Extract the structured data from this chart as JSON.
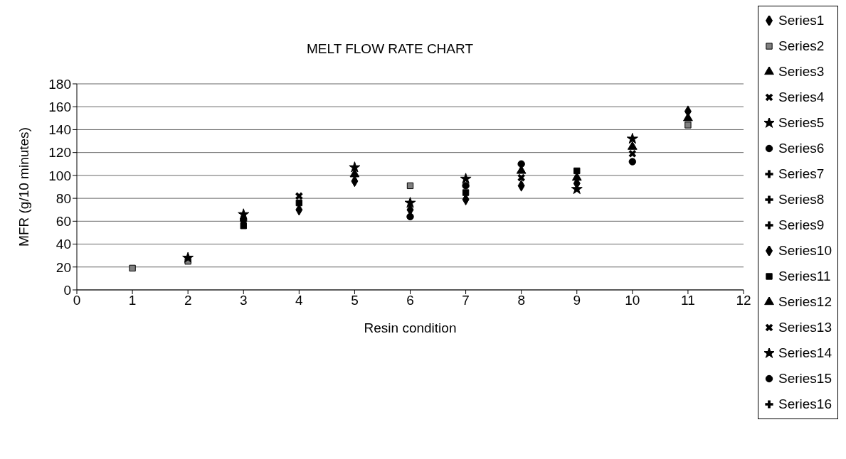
{
  "chart_data": {
    "type": "scatter",
    "title": "MELT FLOW RATE CHART",
    "xlabel": "Resin condition",
    "ylabel": "MFR (g/10 minutes)",
    "x": [
      1,
      2,
      3,
      4,
      5,
      6,
      7,
      8,
      9,
      10,
      11
    ],
    "xlim": [
      0,
      12
    ],
    "xticks": [
      0,
      1,
      2,
      3,
      4,
      5,
      6,
      7,
      8,
      9,
      10,
      11,
      12
    ],
    "ylim": [
      0,
      180
    ],
    "yticks": [
      0,
      20,
      40,
      60,
      80,
      100,
      120,
      140,
      160,
      180
    ],
    "grid": "y",
    "legend": "right",
    "series": [
      {
        "name": "Series1",
        "color": "#000000",
        "marker": "diamond",
        "values": [
          null,
          null,
          null,
          null,
          95,
          null,
          79,
          91,
          null,
          null,
          156
        ]
      },
      {
        "name": "Series2",
        "color": "#808080",
        "marker": "square",
        "values": [
          19,
          25,
          null,
          null,
          null,
          91,
          null,
          null,
          null,
          null,
          144
        ]
      },
      {
        "name": "Series3",
        "color": "#000000",
        "marker": "triangle",
        "values": [
          null,
          null,
          null,
          null,
          101,
          null,
          null,
          104,
          98,
          125,
          null
        ]
      },
      {
        "name": "Series4",
        "color": "#000000",
        "marker": "cross",
        "values": [
          null,
          null,
          null,
          82,
          null,
          null,
          null,
          98,
          null,
          119,
          null
        ]
      },
      {
        "name": "Series5",
        "color": "#000000",
        "marker": "star",
        "values": [
          null,
          28,
          66,
          null,
          107,
          null,
          97,
          null,
          null,
          132,
          null
        ]
      },
      {
        "name": "Series6",
        "color": "#000000",
        "marker": "circle",
        "values": [
          null,
          null,
          61,
          null,
          null,
          64,
          91,
          110,
          null,
          112,
          null
        ]
      },
      {
        "name": "Series7",
        "color": "#000000",
        "values": [
          null,
          null,
          null,
          null,
          null,
          null,
          null,
          null,
          null,
          null,
          null
        ]
      },
      {
        "name": "Series8",
        "color": "#000000",
        "values": [
          null,
          null,
          null,
          null,
          null,
          null,
          null,
          null,
          null,
          null,
          null
        ]
      },
      {
        "name": "Series9",
        "color": "#000000",
        "values": [
          null,
          null,
          null,
          null,
          null,
          null,
          null,
          null,
          null,
          null,
          null
        ]
      },
      {
        "name": "Series10",
        "color": "#000000",
        "marker": "diamond",
        "values": [
          null,
          null,
          null,
          70,
          null,
          70,
          null,
          null,
          93,
          null,
          null
        ]
      },
      {
        "name": "Series11",
        "color": "#000000",
        "marker": "square",
        "values": [
          null,
          null,
          56,
          76,
          null,
          null,
          85,
          null,
          104,
          null,
          null
        ]
      },
      {
        "name": "Series12",
        "color": "#000000",
        "marker": "triangle",
        "values": [
          null,
          null,
          null,
          null,
          null,
          null,
          null,
          null,
          null,
          null,
          150
        ]
      },
      {
        "name": "Series13",
        "color": "#000000",
        "marker": "cross",
        "values": [
          null,
          null,
          null,
          null,
          null,
          null,
          null,
          null,
          null,
          null,
          null
        ]
      },
      {
        "name": "Series14",
        "color": "#000000",
        "marker": "star",
        "values": [
          null,
          null,
          null,
          null,
          null,
          76,
          null,
          null,
          88,
          null,
          null
        ]
      },
      {
        "name": "Series15",
        "color": "#000000",
        "marker": "circle",
        "values": [
          null,
          null,
          null,
          null,
          null,
          null,
          null,
          null,
          null,
          null,
          null
        ]
      },
      {
        "name": "Series16",
        "color": "#000000",
        "values": [
          null,
          null,
          null,
          null,
          null,
          null,
          null,
          null,
          null,
          null,
          null
        ]
      }
    ]
  }
}
